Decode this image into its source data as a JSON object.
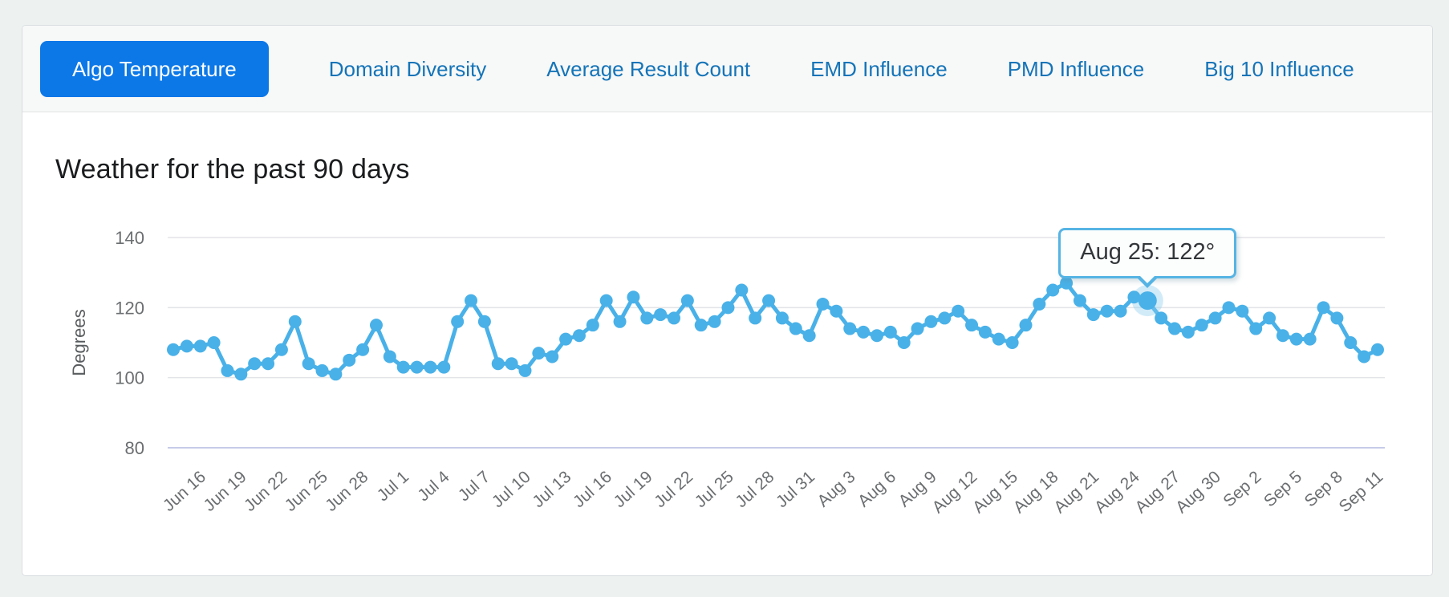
{
  "tabs": {
    "items": [
      {
        "label": "Algo Temperature",
        "active": true
      },
      {
        "label": "Domain Diversity",
        "active": false
      },
      {
        "label": "Average Result Count",
        "active": false
      },
      {
        "label": "EMD Influence",
        "active": false
      },
      {
        "label": "PMD Influence",
        "active": false
      },
      {
        "label": "Big 10 Influence",
        "active": false
      }
    ]
  },
  "chart": {
    "title": "Weather for the past 90 days"
  },
  "chart_data": {
    "type": "line",
    "title": "Weather for the past 90 days",
    "ylabel": "Degrees",
    "ylim": [
      80,
      140
    ],
    "y_ticks": [
      140,
      120,
      100,
      80
    ],
    "grid": "horizontal-only",
    "x_tick_labels": [
      "Jun 16",
      "Jun 19",
      "Jun 22",
      "Jun 25",
      "Jun 28",
      "Jul 1",
      "Jul 4",
      "Jul 7",
      "Jul 10",
      "Jul 13",
      "Jul 16",
      "Jul 19",
      "Jul 22",
      "Jul 25",
      "Jul 28",
      "Jul 31",
      "Aug 3",
      "Aug 6",
      "Aug 9",
      "Aug 12",
      "Aug 15",
      "Aug 18",
      "Aug 21",
      "Aug 24",
      "Aug 27",
      "Aug 30",
      "Sep 2",
      "Sep 5",
      "Sep 8",
      "Sep 11"
    ],
    "x_tick_start_index": 2,
    "x_tick_step": 3,
    "values": [
      108,
      109,
      109,
      110,
      102,
      101,
      104,
      104,
      108,
      116,
      104,
      102,
      101,
      105,
      108,
      115,
      106,
      103,
      103,
      103,
      103,
      116,
      122,
      116,
      104,
      104,
      102,
      107,
      106,
      111,
      112,
      115,
      122,
      116,
      123,
      117,
      118,
      117,
      122,
      115,
      116,
      120,
      125,
      117,
      122,
      117,
      114,
      112,
      121,
      119,
      114,
      113,
      112,
      113,
      110,
      114,
      116,
      117,
      119,
      115,
      113,
      111,
      110,
      115,
      121,
      125,
      127,
      122,
      118,
      119,
      119,
      123,
      122,
      117,
      114,
      113,
      115,
      117,
      120,
      119,
      114,
      117,
      112,
      111,
      111,
      120,
      117,
      110,
      106,
      108
    ],
    "highlight": {
      "index": 72,
      "tooltip": "Aug 25: 122°"
    },
    "colors": {
      "line": "#49b1e8",
      "grid": "#e3e4e8",
      "baseline": "#c6cbe9",
      "axis_text": "#6b6e70",
      "active_tab": "#0c78e8",
      "tab_text": "#1474b8",
      "highlight_halo": "rgba(140,205,238,0.40)",
      "tooltip_border": "#56b4e4"
    }
  }
}
